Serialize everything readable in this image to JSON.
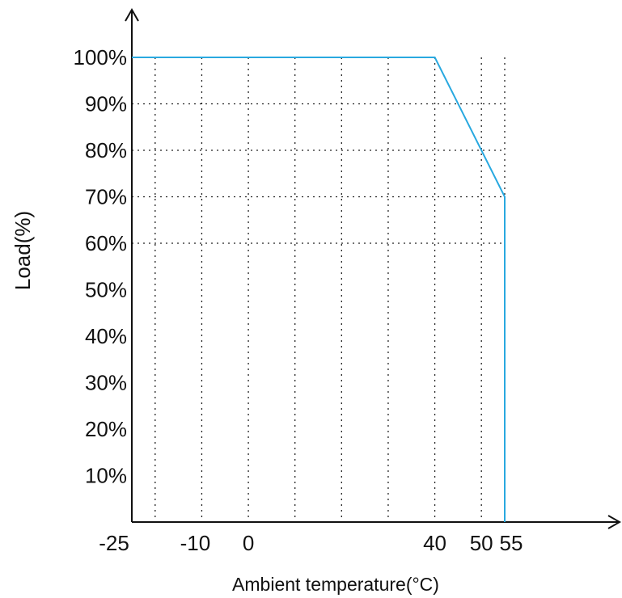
{
  "chart_data": {
    "type": "line",
    "title": "",
    "xlabel": "Ambient temperature(°C)",
    "ylabel": "Load(%)",
    "xlim": [
      -25,
      74
    ],
    "ylim": [
      0,
      100
    ],
    "x_tick_labels": [
      {
        "value": -25,
        "label": "-25"
      },
      {
        "value": -10,
        "label": "-10"
      },
      {
        "value": 0,
        "label": "0"
      },
      {
        "value": 40,
        "label": "40"
      },
      {
        "value": 50,
        "label": "50"
      },
      {
        "value": 55,
        "label": "55"
      }
    ],
    "y_tick_labels": [
      {
        "value": 100,
        "label": "100%"
      },
      {
        "value": 90,
        "label": "90%"
      },
      {
        "value": 80,
        "label": "80%"
      },
      {
        "value": 70,
        "label": "70%"
      },
      {
        "value": 60,
        "label": "60%"
      },
      {
        "value": 50,
        "label": "50%"
      },
      {
        "value": 40,
        "label": "40%"
      },
      {
        "value": 30,
        "label": "30%"
      },
      {
        "value": 20,
        "label": "20%"
      },
      {
        "value": 10,
        "label": "10%"
      }
    ],
    "grid": {
      "style": "dotted",
      "vertical_at": [
        -20,
        -10,
        0,
        10,
        20,
        30,
        40,
        50,
        55
      ],
      "horizontal_at": [
        90,
        80,
        70,
        60
      ]
    },
    "series": [
      {
        "color": "#29a9e0",
        "x": [
          -25,
          40,
          55,
          55
        ],
        "y": [
          100,
          100,
          70,
          0
        ]
      }
    ]
  }
}
